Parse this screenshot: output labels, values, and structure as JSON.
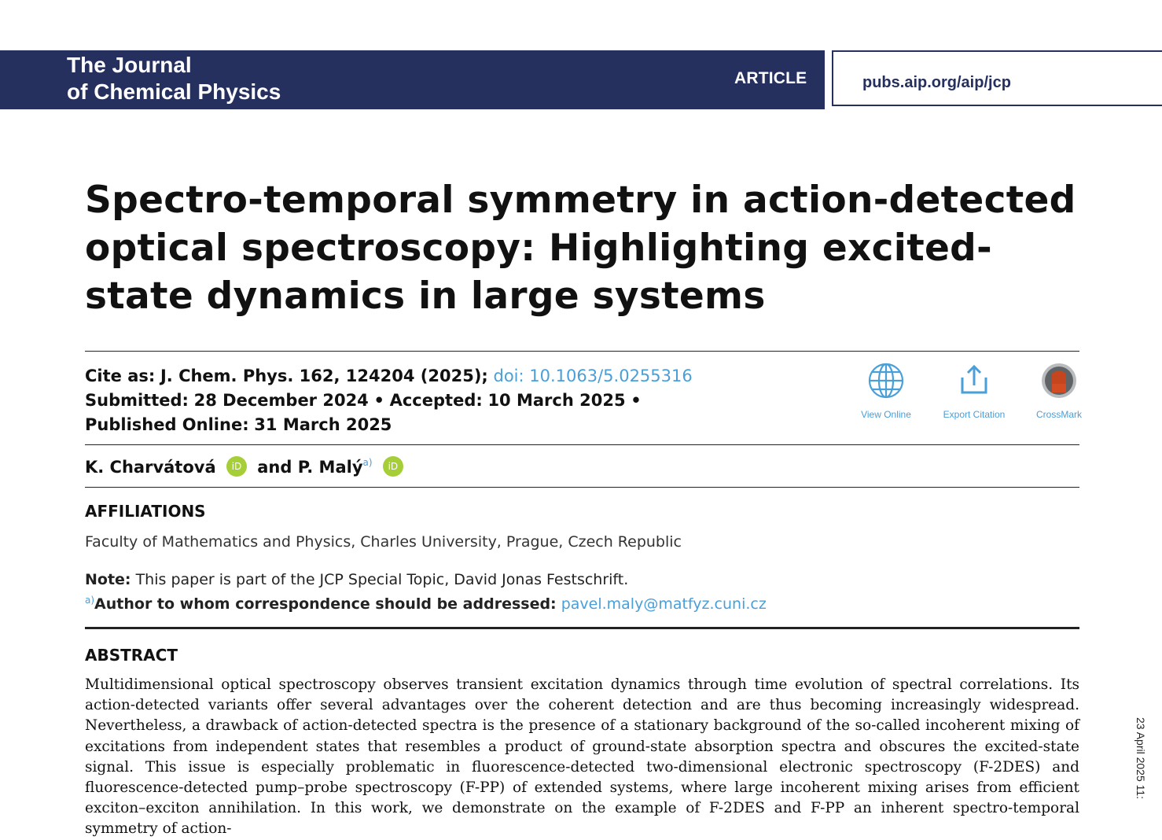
{
  "header": {
    "journal_line1": "The Journal",
    "journal_line2": "of Chemical Physics",
    "article_type": "ARTICLE",
    "url": "pubs.aip.org/aip/jcp"
  },
  "title": "Spectro-temporal symmetry in action-detected optical spectroscopy: Highlighting excited-state dynamics in large systems",
  "citation": {
    "cite_label": "Cite as:",
    "cite_value": "J. Chem. Phys. 162, 124204 (2025);",
    "doi": "doi: 10.1063/5.0255316",
    "submitted_label": "Submitted:",
    "submitted_value": "28 December 2024",
    "accepted_label": "Accepted:",
    "accepted_value": "10 March 2025",
    "published_label": "Published Online:",
    "published_value": "31 March 2025"
  },
  "tools": {
    "view_online": "View Online",
    "export_citation": "Export Citation",
    "crossmark": "CrossMark"
  },
  "authors": {
    "author1": "K. Charvátová",
    "conjunction": "and",
    "author2": "P. Malý",
    "author2_sup": "a)",
    "orcid_label": "iD"
  },
  "affiliations": {
    "heading": "AFFILIATIONS",
    "text": "Faculty of Mathematics and Physics, Charles University, Prague, Czech Republic"
  },
  "note": {
    "label": "Note:",
    "text": "This paper is part of the JCP Special Topic, David Jonas Festschrift.",
    "corr_sup": "a)",
    "corr_label": "Author to whom correspondence should be addressed:",
    "email": "pavel.maly@matfyz.cuni.cz"
  },
  "abstract": {
    "heading": "ABSTRACT",
    "text": "Multidimensional optical spectroscopy observes transient excitation dynamics through time evolution of spectral correlations. Its action-detected variants offer several advantages over the coherent detection and are thus becoming increasingly widespread. Nevertheless, a drawback of action-detected spectra is the presence of a stationary background of the so-called incoherent mixing of excitations from independent states that resembles a product of ground-state absorption spectra and obscures the excited-state signal. This issue is especially problematic in fluorescence-detected two-dimensional electronic spectroscopy (F-2DES) and fluorescence-detected pump–probe spectroscopy (F-PP) of extended systems, where large incoherent mixing arises from efficient exciton–exciton annihilation. In this work, we demonstrate on the example of F-2DES and F-PP an inherent spectro-temporal symmetry of action-"
  },
  "side_stamp": "23 April 2025 11:"
}
